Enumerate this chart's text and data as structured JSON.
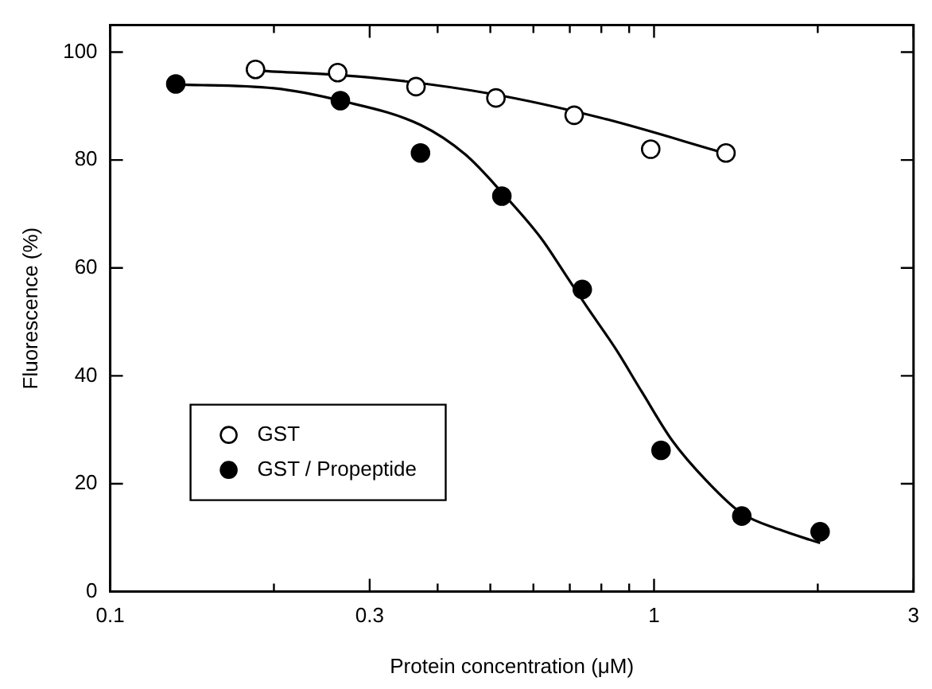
{
  "chart_data": {
    "type": "scatter",
    "xlabel": "Protein concentration (μM)",
    "ylabel": "Fluorescence (%)",
    "log": "x",
    "xlim": [
      0.1,
      3
    ],
    "ylim": [
      0,
      105
    ],
    "xticks": [
      0.1,
      {
        "value": 0.2,
        "label": null
      },
      0.3,
      {
        "value": 0.4,
        "label": null
      },
      {
        "value": 0.5,
        "label": null
      },
      {
        "value": 0.6,
        "label": null
      },
      {
        "value": 0.7,
        "label": null
      },
      {
        "value": 0.8,
        "label": null
      },
      {
        "value": 0.9,
        "label": null
      },
      1,
      {
        "value": 2,
        "label": null
      },
      3
    ],
    "yticks": [
      0,
      20,
      40,
      60,
      80,
      100
    ],
    "grid": false,
    "legend": "bottom left",
    "marker": "circle",
    "series": [
      {
        "name": "GST",
        "color": "#000000",
        "x": [
          0.185,
          0.262,
          0.365,
          0.512,
          0.713,
          0.986,
          1.356
        ],
        "values": [
          96.8,
          96.2,
          93.6,
          91.5,
          88.3,
          82.0,
          81.3
        ]
      },
      {
        "name": "GST / Propeptide",
        "color": "#000000",
        "x": [
          0.132,
          0.265,
          0.372,
          0.525,
          0.738,
          1.03,
          1.45,
          2.02
        ],
        "values": [
          94.1,
          91.0,
          81.3,
          73.3,
          56.0,
          26.2,
          14.0,
          11.1
        ]
      },
      {
        "type": "line",
        "marker": "none",
        "color": "#000000",
        "x": [
          0.185,
          0.3,
          0.5,
          0.8,
          1.356
        ],
        "values": [
          96.6,
          95.3,
          92.3,
          87.8,
          81.2
        ]
      },
      {
        "type": "line",
        "marker": "none",
        "color": "#000000",
        "x": [
          0.132,
          0.2,
          0.265,
          0.372,
          0.45,
          0.525,
          0.62,
          0.685,
          0.75,
          0.85,
          0.95,
          1.08,
          1.25,
          1.45,
          1.7,
          2.02
        ],
        "values": [
          94,
          93.3,
          91,
          86.5,
          81,
          74,
          65.5,
          59,
          53,
          45,
          37,
          28,
          20.5,
          14.5,
          11.5,
          9
        ]
      }
    ]
  }
}
